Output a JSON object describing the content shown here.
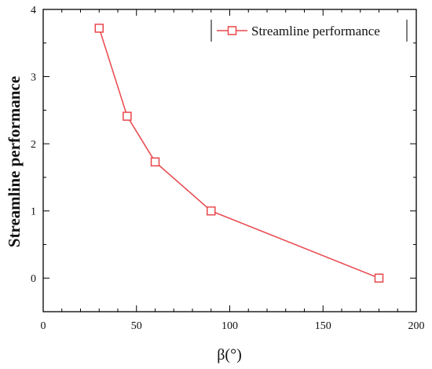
{
  "chart_data": {
    "type": "line",
    "xlabel": "β(°)",
    "ylabel": "Streamline performance",
    "xlim": [
      0,
      200
    ],
    "ylim": [
      -0.5,
      4
    ],
    "x_ticks": [
      "0",
      "50",
      "100",
      "150",
      "200"
    ],
    "y_ticks": [
      "0",
      "1",
      "2",
      "3",
      "4"
    ],
    "legend_position": "top-right",
    "grid": false,
    "series": [
      {
        "name": "Streamline performance",
        "color": "#e8474c",
        "marker": "square-open",
        "x": [
          30,
          45,
          60,
          90,
          180
        ],
        "y": [
          3.72,
          2.41,
          1.73,
          1.0,
          0.0
        ]
      }
    ]
  }
}
